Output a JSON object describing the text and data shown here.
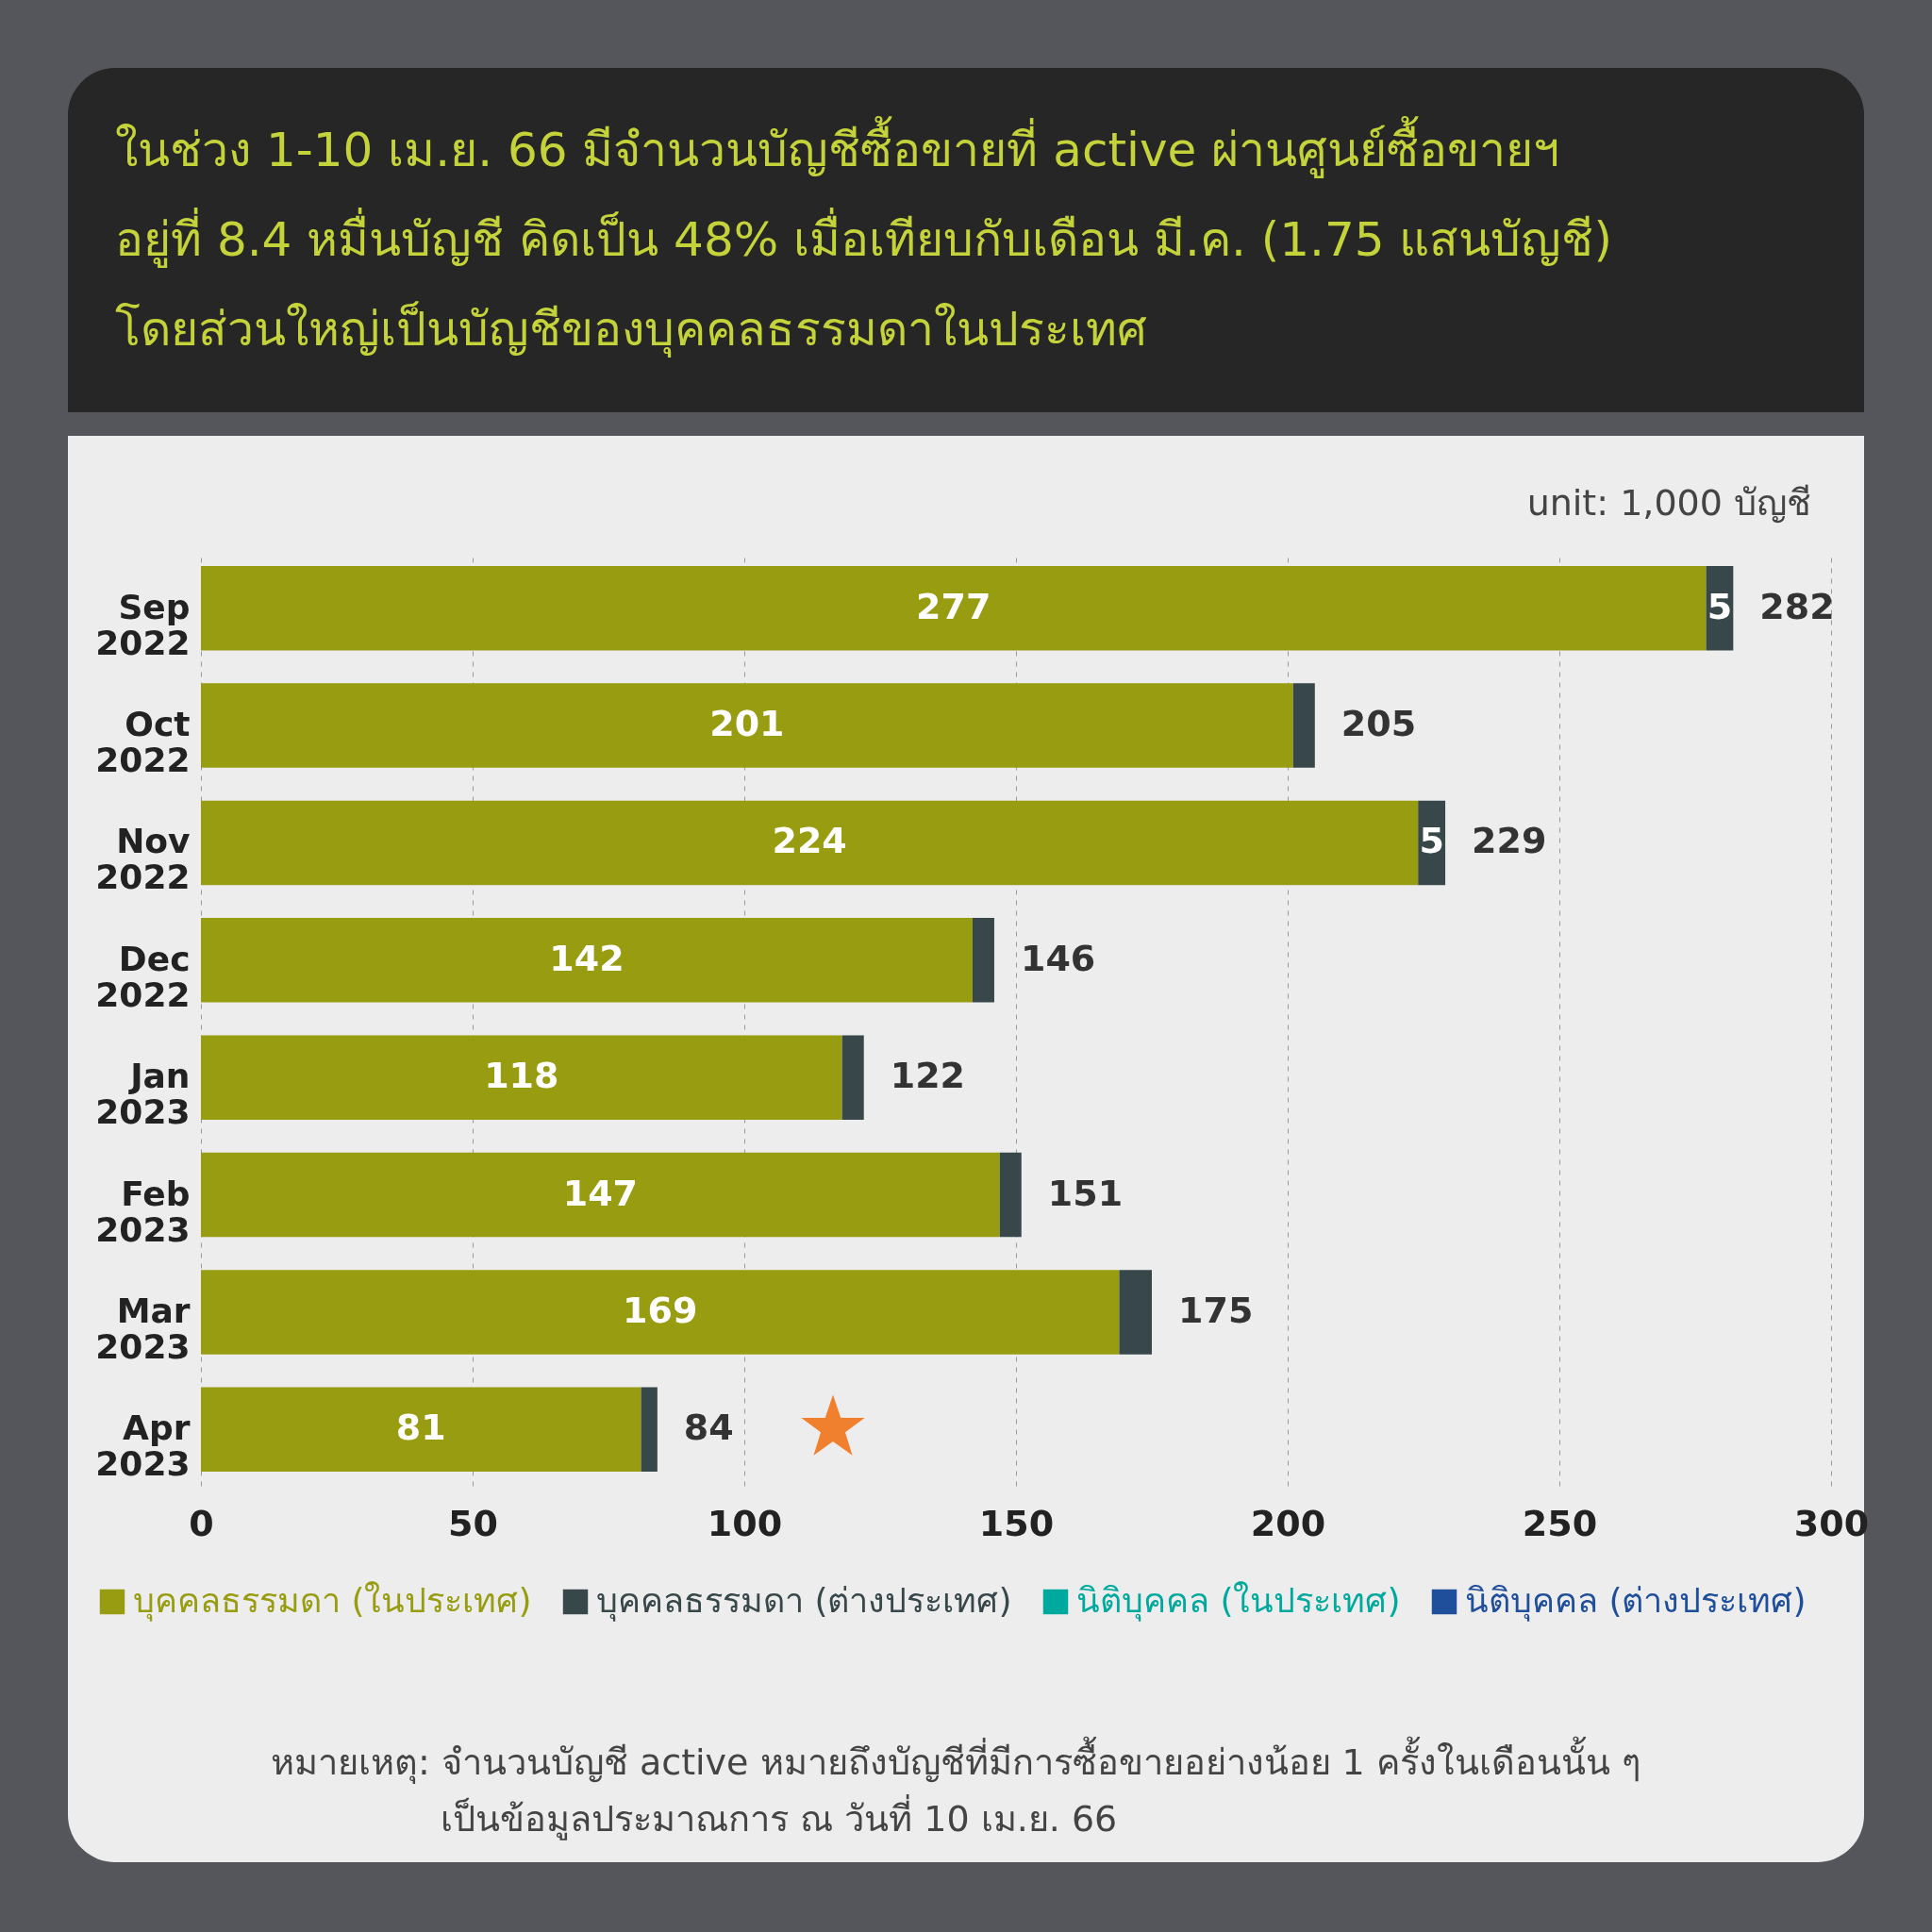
{
  "chart_data": {
    "type": "bar",
    "orientation": "horizontal",
    "stacked": true,
    "title": "ในช่วง 1-10 เม.ย. 66 มีจำนวนบัญชีซื้อขายที่ active ผ่านศูนย์ซื้อขายฯ\nอยู่ที่ 8.4 หมื่นบัญชี คิดเป็น 48% เมื่อเทียบกับเดือน มี.ค. (1.75 แสนบัญชี)\nโดยส่วนใหญ่เป็นบัญชีของบุคคลธรรมดาในประเทศ",
    "categories": [
      "Sep 2022",
      "Oct 2022",
      "Nov 2022",
      "Dec 2022",
      "Jan 2023",
      "Feb 2023",
      "Mar 2023",
      "Apr 2023"
    ],
    "series": [
      {
        "name": "บุคคลธรรมดา (ในประเทศ)",
        "color": "#989c10",
        "values": [
          277,
          201,
          224,
          142,
          118,
          147,
          169,
          81
        ],
        "value_labels": [
          "277",
          "201",
          "224",
          "142",
          "118",
          "147",
          "169",
          "81"
        ]
      },
      {
        "name": "บุคคลธรรมดา (ต่างประเทศ)",
        "color": "#37474a",
        "values": [
          5,
          4,
          5,
          4,
          4,
          4,
          6,
          3
        ],
        "value_labels": [
          "5",
          null,
          "5",
          null,
          null,
          null,
          null,
          null
        ]
      },
      {
        "name": "นิติบุคคล (ในประเทศ)",
        "color": "#00a99d",
        "values": [
          null,
          null,
          null,
          null,
          null,
          null,
          null,
          null
        ]
      },
      {
        "name": "นิติบุคคล (ต่างประเทศ)",
        "color": "#1f4e9b",
        "values": [
          null,
          null,
          null,
          null,
          null,
          null,
          null,
          null
        ]
      }
    ],
    "totals": [
      "282",
      "205",
      "229",
      "146",
      "122",
      "151",
      "175",
      "84"
    ],
    "xlim": [
      0,
      300
    ],
    "xticks": [
      0,
      50,
      100,
      150,
      200,
      250,
      300
    ],
    "grid": "x",
    "legend": "bottom",
    "annotations": [
      "unit: 1,000 บัญชี",
      "หมายเหตุ: จำนวนบัญชี active หมายถึงบัญชีที่มีการซื้อขายอย่างน้อย 1 ครั้งในเดือนนั้น ๆ",
      "เป็นข้อมูลประมาณการ ณ วันที่ 10 เม.ย. 66"
    ]
  }
}
